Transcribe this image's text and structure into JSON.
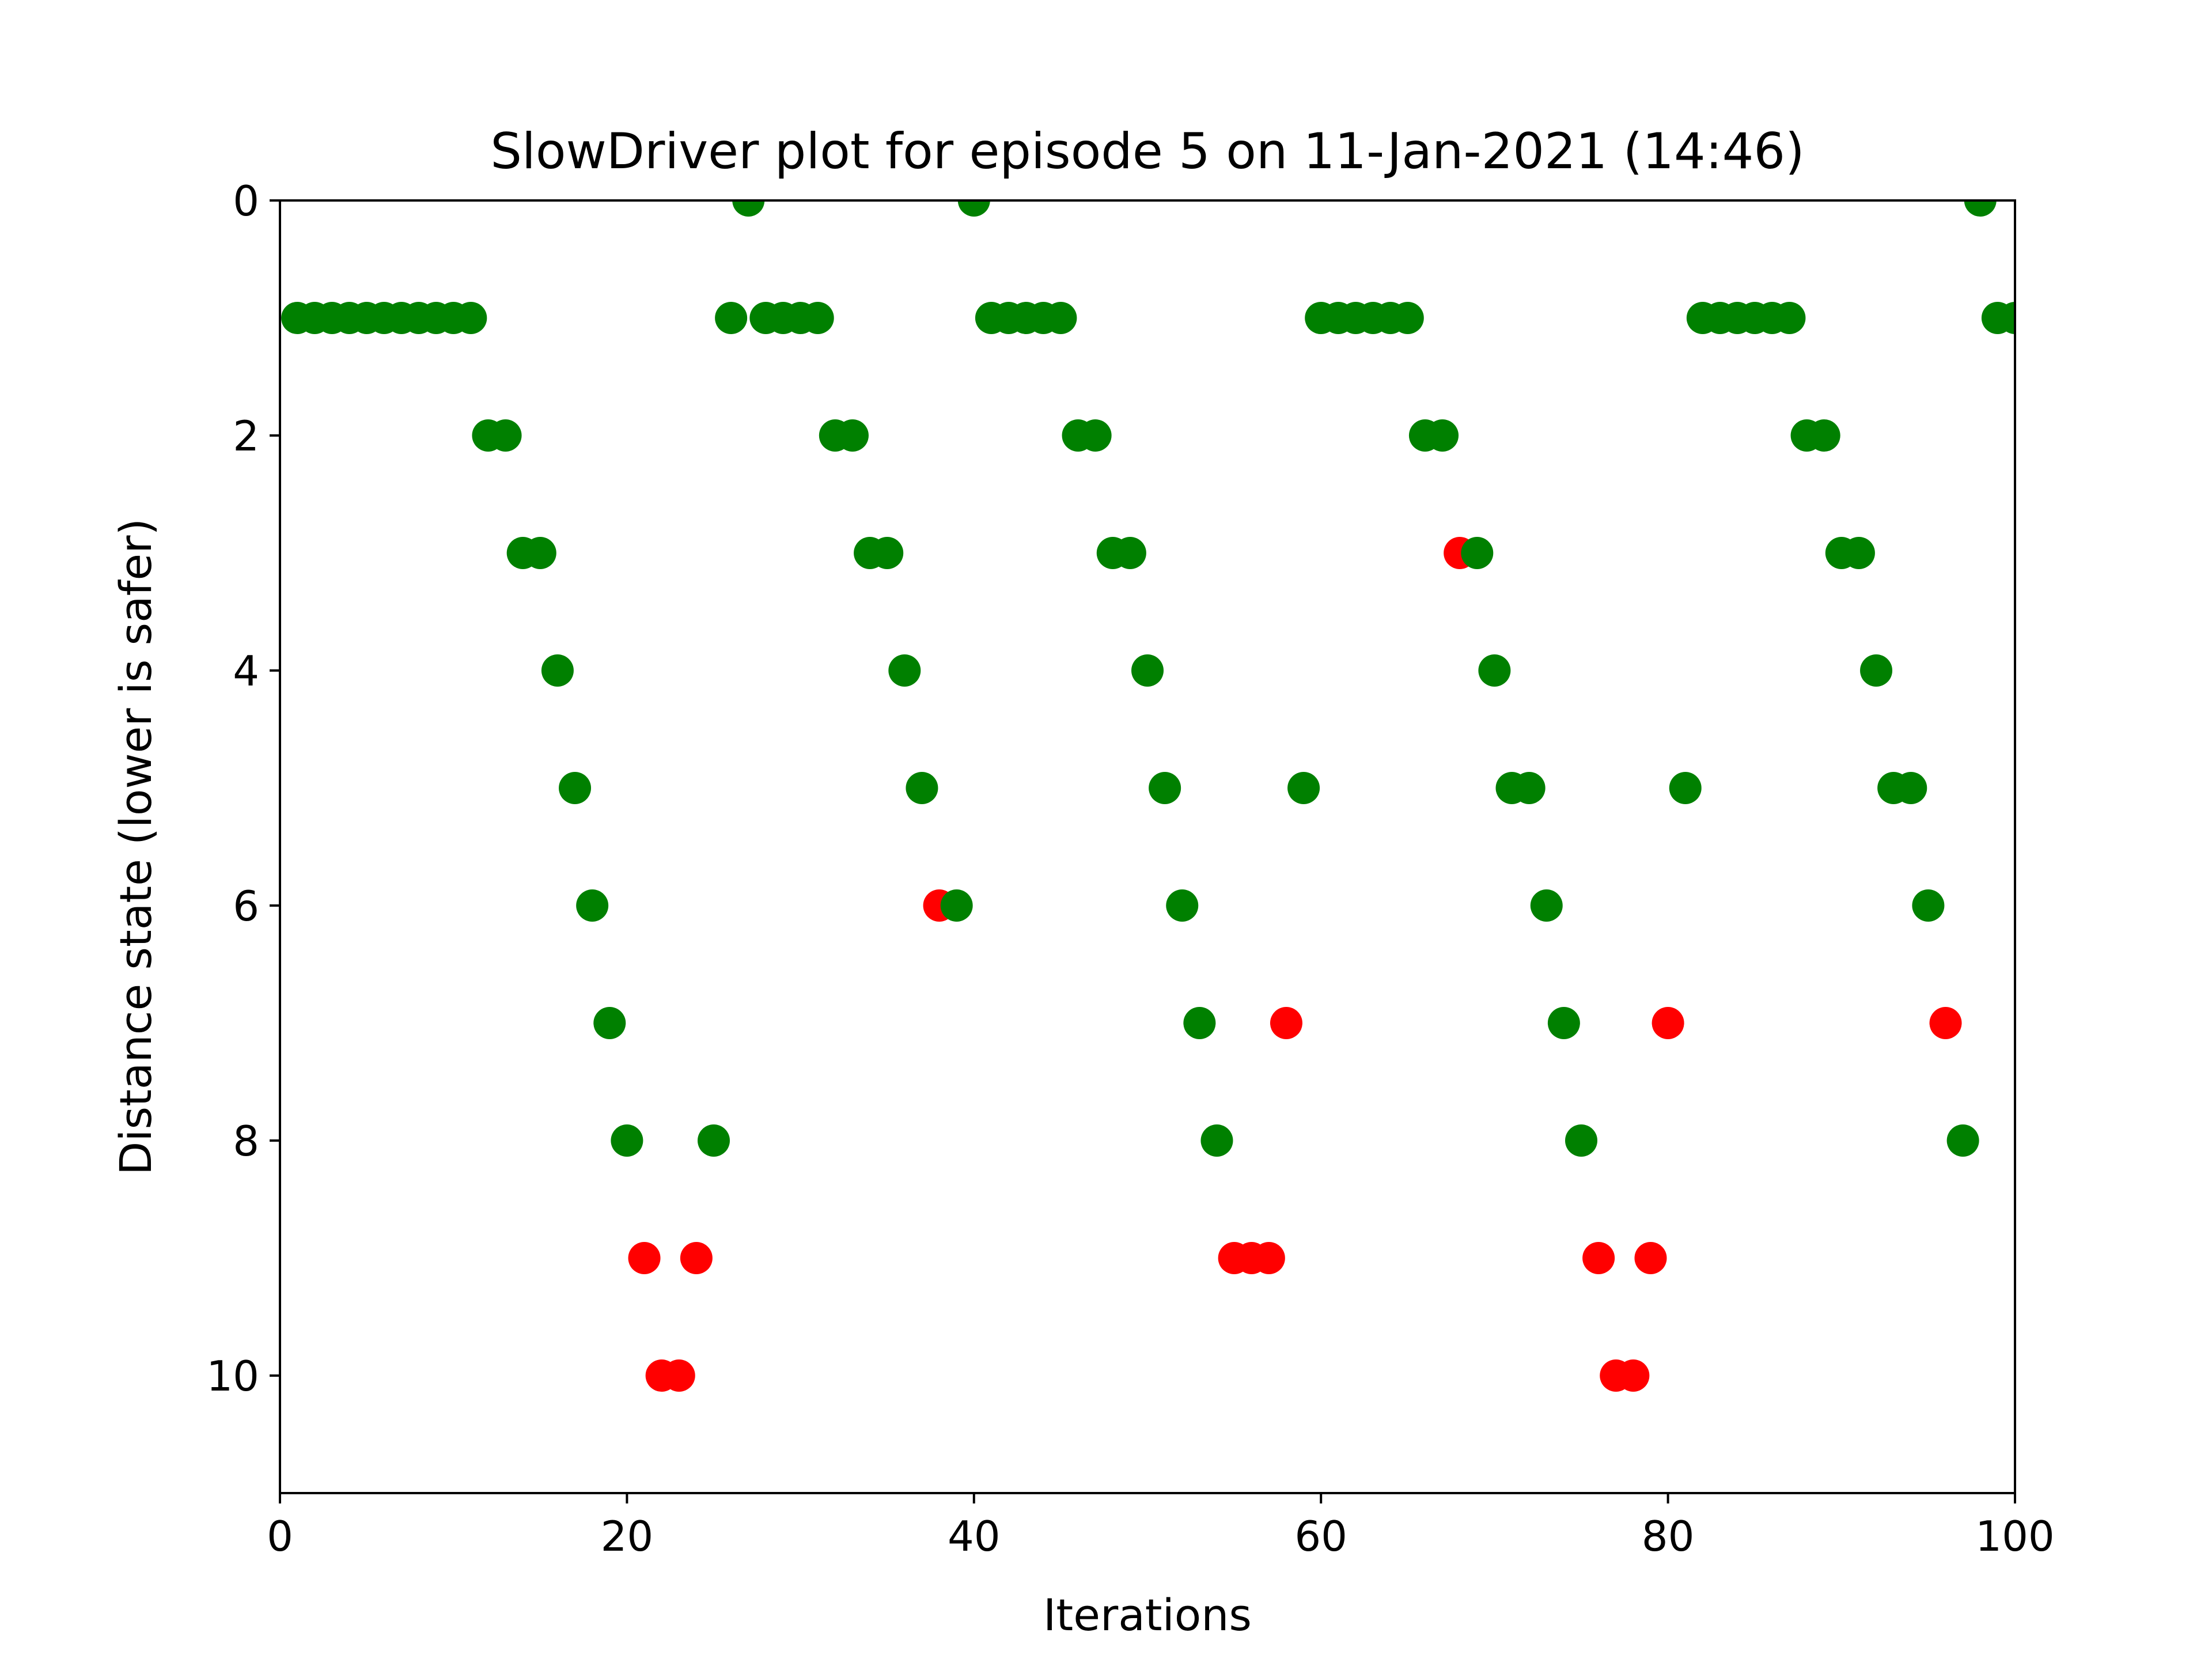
{
  "chart_data": {
    "type": "scatter",
    "title": "SlowDriver plot for episode 5 on 11-Jan-2021 (14:46)",
    "xlabel": "Iterations",
    "ylabel": "Distance state (lower is safer)",
    "xlim": [
      0,
      100
    ],
    "ylim": [
      11,
      0
    ],
    "y_inverted": true,
    "grid": false,
    "xticks": [
      0,
      20,
      40,
      60,
      80,
      100
    ],
    "yticks": [
      0,
      2,
      4,
      6,
      8,
      10
    ],
    "colors": {
      "safe": "#008000",
      "unsafe": "#ff0000"
    },
    "points": [
      {
        "x": 1,
        "y": 1,
        "color": "safe"
      },
      {
        "x": 2,
        "y": 1,
        "color": "safe"
      },
      {
        "x": 3,
        "y": 1,
        "color": "safe"
      },
      {
        "x": 4,
        "y": 1,
        "color": "safe"
      },
      {
        "x": 5,
        "y": 1,
        "color": "safe"
      },
      {
        "x": 6,
        "y": 1,
        "color": "safe"
      },
      {
        "x": 7,
        "y": 1,
        "color": "safe"
      },
      {
        "x": 8,
        "y": 1,
        "color": "safe"
      },
      {
        "x": 9,
        "y": 1,
        "color": "safe"
      },
      {
        "x": 10,
        "y": 1,
        "color": "safe"
      },
      {
        "x": 11,
        "y": 1,
        "color": "safe"
      },
      {
        "x": 12,
        "y": 2,
        "color": "safe"
      },
      {
        "x": 13,
        "y": 2,
        "color": "safe"
      },
      {
        "x": 14,
        "y": 3,
        "color": "safe"
      },
      {
        "x": 15,
        "y": 3,
        "color": "safe"
      },
      {
        "x": 16,
        "y": 4,
        "color": "safe"
      },
      {
        "x": 17,
        "y": 5,
        "color": "safe"
      },
      {
        "x": 18,
        "y": 6,
        "color": "safe"
      },
      {
        "x": 19,
        "y": 7,
        "color": "safe"
      },
      {
        "x": 20,
        "y": 8,
        "color": "safe"
      },
      {
        "x": 21,
        "y": 9,
        "color": "unsafe"
      },
      {
        "x": 22,
        "y": 10,
        "color": "unsafe"
      },
      {
        "x": 23,
        "y": 10,
        "color": "unsafe"
      },
      {
        "x": 24,
        "y": 9,
        "color": "unsafe"
      },
      {
        "x": 25,
        "y": 8,
        "color": "safe"
      },
      {
        "x": 26,
        "y": 1,
        "color": "safe"
      },
      {
        "x": 27,
        "y": 0,
        "color": "safe"
      },
      {
        "x": 28,
        "y": 1,
        "color": "safe"
      },
      {
        "x": 29,
        "y": 1,
        "color": "safe"
      },
      {
        "x": 30,
        "y": 1,
        "color": "safe"
      },
      {
        "x": 31,
        "y": 1,
        "color": "safe"
      },
      {
        "x": 32,
        "y": 2,
        "color": "safe"
      },
      {
        "x": 33,
        "y": 2,
        "color": "safe"
      },
      {
        "x": 34,
        "y": 3,
        "color": "safe"
      },
      {
        "x": 35,
        "y": 3,
        "color": "safe"
      },
      {
        "x": 36,
        "y": 4,
        "color": "safe"
      },
      {
        "x": 37,
        "y": 5,
        "color": "safe"
      },
      {
        "x": 38,
        "y": 6,
        "color": "unsafe"
      },
      {
        "x": 39,
        "y": 6,
        "color": "safe"
      },
      {
        "x": 40,
        "y": 0,
        "color": "safe"
      },
      {
        "x": 41,
        "y": 1,
        "color": "safe"
      },
      {
        "x": 42,
        "y": 1,
        "color": "safe"
      },
      {
        "x": 43,
        "y": 1,
        "color": "safe"
      },
      {
        "x": 44,
        "y": 1,
        "color": "safe"
      },
      {
        "x": 45,
        "y": 1,
        "color": "safe"
      },
      {
        "x": 46,
        "y": 2,
        "color": "safe"
      },
      {
        "x": 47,
        "y": 2,
        "color": "safe"
      },
      {
        "x": 48,
        "y": 3,
        "color": "safe"
      },
      {
        "x": 49,
        "y": 3,
        "color": "safe"
      },
      {
        "x": 50,
        "y": 4,
        "color": "safe"
      },
      {
        "x": 51,
        "y": 5,
        "color": "safe"
      },
      {
        "x": 52,
        "y": 6,
        "color": "safe"
      },
      {
        "x": 53,
        "y": 7,
        "color": "safe"
      },
      {
        "x": 54,
        "y": 8,
        "color": "safe"
      },
      {
        "x": 55,
        "y": 9,
        "color": "unsafe"
      },
      {
        "x": 56,
        "y": 9,
        "color": "unsafe"
      },
      {
        "x": 57,
        "y": 9,
        "color": "unsafe"
      },
      {
        "x": 58,
        "y": 7,
        "color": "unsafe"
      },
      {
        "x": 59,
        "y": 5,
        "color": "safe"
      },
      {
        "x": 60,
        "y": 1,
        "color": "safe"
      },
      {
        "x": 61,
        "y": 1,
        "color": "safe"
      },
      {
        "x": 62,
        "y": 1,
        "color": "safe"
      },
      {
        "x": 63,
        "y": 1,
        "color": "safe"
      },
      {
        "x": 64,
        "y": 1,
        "color": "safe"
      },
      {
        "x": 65,
        "y": 1,
        "color": "safe"
      },
      {
        "x": 66,
        "y": 2,
        "color": "safe"
      },
      {
        "x": 67,
        "y": 2,
        "color": "safe"
      },
      {
        "x": 68,
        "y": 3,
        "color": "unsafe"
      },
      {
        "x": 69,
        "y": 3,
        "color": "safe"
      },
      {
        "x": 70,
        "y": 4,
        "color": "safe"
      },
      {
        "x": 71,
        "y": 5,
        "color": "safe"
      },
      {
        "x": 72,
        "y": 5,
        "color": "safe"
      },
      {
        "x": 73,
        "y": 6,
        "color": "safe"
      },
      {
        "x": 74,
        "y": 7,
        "color": "safe"
      },
      {
        "x": 75,
        "y": 8,
        "color": "safe"
      },
      {
        "x": 76,
        "y": 9,
        "color": "unsafe"
      },
      {
        "x": 77,
        "y": 10,
        "color": "unsafe"
      },
      {
        "x": 78,
        "y": 10,
        "color": "unsafe"
      },
      {
        "x": 79,
        "y": 9,
        "color": "unsafe"
      },
      {
        "x": 80,
        "y": 7,
        "color": "unsafe"
      },
      {
        "x": 81,
        "y": 5,
        "color": "safe"
      },
      {
        "x": 82,
        "y": 1,
        "color": "safe"
      },
      {
        "x": 83,
        "y": 1,
        "color": "safe"
      },
      {
        "x": 84,
        "y": 1,
        "color": "safe"
      },
      {
        "x": 85,
        "y": 1,
        "color": "safe"
      },
      {
        "x": 86,
        "y": 1,
        "color": "safe"
      },
      {
        "x": 87,
        "y": 1,
        "color": "safe"
      },
      {
        "x": 88,
        "y": 2,
        "color": "safe"
      },
      {
        "x": 89,
        "y": 2,
        "color": "safe"
      },
      {
        "x": 90,
        "y": 3,
        "color": "safe"
      },
      {
        "x": 91,
        "y": 3,
        "color": "safe"
      },
      {
        "x": 92,
        "y": 4,
        "color": "safe"
      },
      {
        "x": 93,
        "y": 5,
        "color": "safe"
      },
      {
        "x": 94,
        "y": 5,
        "color": "safe"
      },
      {
        "x": 95,
        "y": 6,
        "color": "safe"
      },
      {
        "x": 96,
        "y": 7,
        "color": "unsafe"
      },
      {
        "x": 97,
        "y": 8,
        "color": "safe"
      },
      {
        "x": 98,
        "y": 0,
        "color": "safe"
      },
      {
        "x": 99,
        "y": 1,
        "color": "safe"
      },
      {
        "x": 100,
        "y": 1,
        "color": "safe"
      }
    ]
  }
}
